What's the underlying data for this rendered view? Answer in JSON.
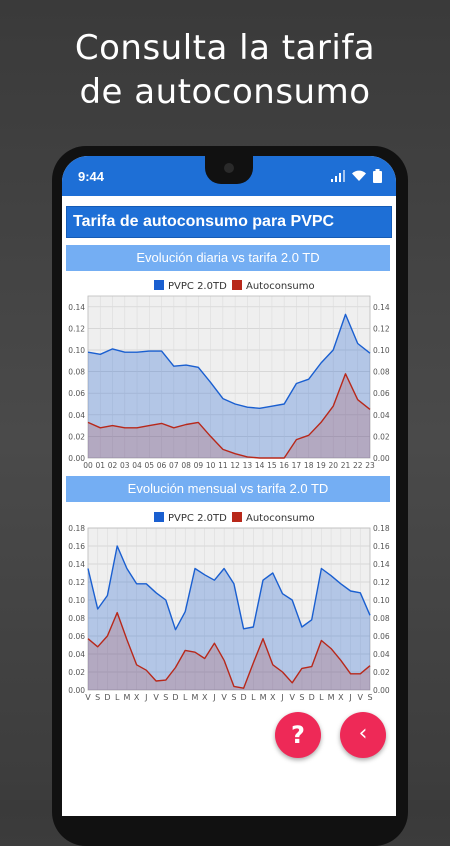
{
  "promo": {
    "line1": "Consulta la tarifa",
    "line2": "de autoconsumo"
  },
  "status_bar": {
    "time": "9:44"
  },
  "app": {
    "title": "Tarifa de autoconsumo para PVPC"
  },
  "sections": {
    "daily_title": "Evolución diaria vs tarifa 2.0 TD",
    "monthly_title": "Evolución mensual vs tarifa 2.0 TD"
  },
  "colors": {
    "accent": "#1e6fd6",
    "section": "#74aef3",
    "pvpc": "#1a5fd0",
    "autoconsumo": "#b8281a",
    "fab": "#ee2957"
  },
  "icons": {
    "signal": "signal-icon",
    "wifi": "wifi-icon",
    "battery": "battery-icon",
    "help": "?",
    "back": "‹"
  },
  "chart_data": [
    {
      "type": "area",
      "title": "Evolución diaria vs tarifa 2.0 TD",
      "legend": "top-center",
      "grid": true,
      "ylim": [
        0,
        0.15
      ],
      "yticks": [
        "0.00",
        "0.02",
        "0.04",
        "0.06",
        "0.08",
        "0.10",
        "0.12",
        "0.14"
      ],
      "x": [
        "00",
        "01",
        "02",
        "03",
        "04",
        "05",
        "06",
        "07",
        "08",
        "09",
        "10",
        "11",
        "12",
        "13",
        "14",
        "15",
        "16",
        "17",
        "18",
        "19",
        "20",
        "21",
        "22",
        "23"
      ],
      "series": [
        {
          "name": "PVPC 2.0TD",
          "values": [
            0.098,
            0.096,
            0.101,
            0.098,
            0.098,
            0.099,
            0.099,
            0.085,
            0.086,
            0.084,
            0.07,
            0.055,
            0.05,
            0.047,
            0.046,
            0.048,
            0.05,
            0.069,
            0.073,
            0.088,
            0.1,
            0.133,
            0.106,
            0.097
          ]
        },
        {
          "name": "Autoconsumo",
          "values": [
            0.033,
            0.028,
            0.03,
            0.028,
            0.028,
            0.03,
            0.032,
            0.028,
            0.031,
            0.033,
            0.02,
            0.008,
            0.004,
            0.001,
            0.0,
            0.0,
            0.0,
            0.017,
            0.021,
            0.033,
            0.048,
            0.078,
            0.054,
            0.045
          ]
        }
      ]
    },
    {
      "type": "area",
      "title": "Evolución mensual vs tarifa 2.0 TD",
      "legend": "top-center",
      "grid": true,
      "ylim": [
        0,
        0.18
      ],
      "yticks": [
        "0.00",
        "0.02",
        "0.04",
        "0.06",
        "0.08",
        "0.10",
        "0.12",
        "0.14",
        "0.16",
        "0.18"
      ],
      "x": [
        "V",
        "S",
        "D",
        "L",
        "M",
        "X",
        "J",
        "V",
        "S",
        "D",
        "L",
        "M",
        "X",
        "J",
        "V",
        "S",
        "D",
        "L",
        "M",
        "X",
        "J",
        "V",
        "S",
        "D",
        "L",
        "M",
        "X",
        "J",
        "V",
        "S"
      ],
      "series": [
        {
          "name": "PVPC 2.0TD",
          "values": [
            0.135,
            0.09,
            0.105,
            0.16,
            0.135,
            0.118,
            0.118,
            0.108,
            0.1,
            0.067,
            0.087,
            0.135,
            0.128,
            0.122,
            0.135,
            0.118,
            0.068,
            0.07,
            0.122,
            0.13,
            0.107,
            0.1,
            0.07,
            0.078,
            0.135,
            0.127,
            0.118,
            0.11,
            0.108,
            0.083
          ]
        },
        {
          "name": "Autoconsumo",
          "values": [
            0.057,
            0.048,
            0.06,
            0.086,
            0.056,
            0.028,
            0.022,
            0.01,
            0.011,
            0.025,
            0.044,
            0.042,
            0.035,
            0.052,
            0.033,
            0.004,
            0.002,
            0.03,
            0.057,
            0.028,
            0.02,
            0.008,
            0.024,
            0.026,
            0.055,
            0.046,
            0.033,
            0.018,
            0.018,
            0.027
          ]
        }
      ]
    }
  ]
}
